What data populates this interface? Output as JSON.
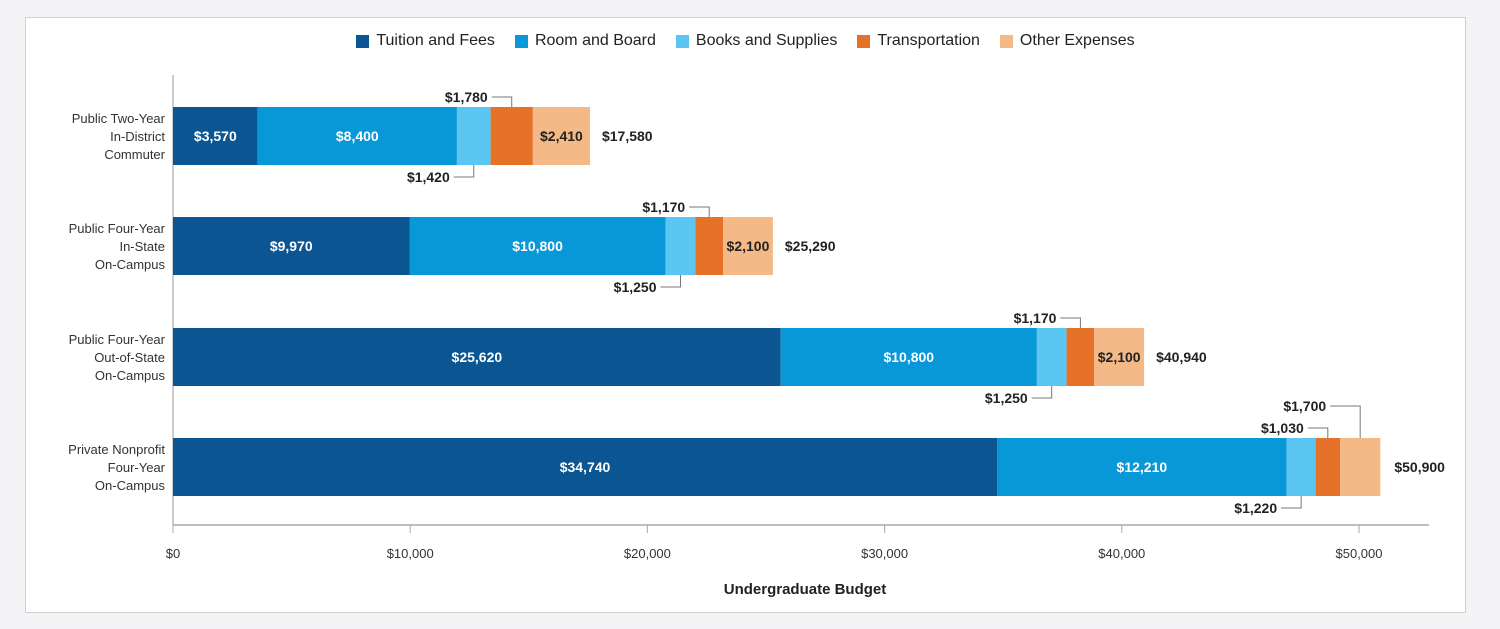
{
  "chart_data": {
    "type": "bar",
    "orientation": "horizontal",
    "stacked": true,
    "title": "",
    "xlabel": "Undergraduate Budget",
    "ylabel": "",
    "xlim": [
      0,
      53000
    ],
    "x_ticks": [
      0,
      10000,
      20000,
      30000,
      40000,
      50000
    ],
    "x_tick_labels": [
      "$0",
      "$10,000",
      "$20,000",
      "$30,000",
      "$40,000",
      "$50,000"
    ],
    "grid": false,
    "legend_position": "top-center",
    "categories": [
      [
        "Public Two-Year",
        "In-District",
        "Commuter"
      ],
      [
        "Public Four-Year",
        "In-State",
        "On-Campus"
      ],
      [
        "Public Four-Year",
        "Out-of-State",
        "On-Campus"
      ],
      [
        "Private Nonprofit",
        "Four-Year",
        "On-Campus"
      ]
    ],
    "series": [
      {
        "name": "Tuition and Fees",
        "color": "#0b5592",
        "values": [
          3570,
          9970,
          25620,
          34740
        ],
        "labels": [
          "$3,570",
          "$9,970",
          "$25,620",
          "$34,740"
        ]
      },
      {
        "name": "Room and Board",
        "color": "#0898d8",
        "values": [
          8400,
          10800,
          10800,
          12210
        ],
        "labels": [
          "$8,400",
          "$10,800",
          "$10,800",
          "$12,210"
        ]
      },
      {
        "name": "Books and Supplies",
        "color": "#5cc6f2",
        "values": [
          1420,
          1250,
          1250,
          1220
        ],
        "labels": [
          "$1,420",
          "$1,250",
          "$1,250",
          "$1,220"
        ]
      },
      {
        "name": "Transportation",
        "color": "#e6722a",
        "values": [
          1780,
          1170,
          1170,
          1030
        ],
        "labels": [
          "$1,780",
          "$1,170",
          "$1,170",
          "$1,030"
        ]
      },
      {
        "name": "Other Expenses",
        "color": "#f4b987",
        "values": [
          2410,
          2100,
          2100,
          1700
        ],
        "labels": [
          "$2,410",
          "$2,100",
          "$2,100",
          "$1,700"
        ]
      }
    ],
    "totals": [
      17580,
      25290,
      40940,
      50900
    ],
    "total_labels": [
      "$17,580",
      "$25,290",
      "$40,940",
      "$50,900"
    ]
  }
}
